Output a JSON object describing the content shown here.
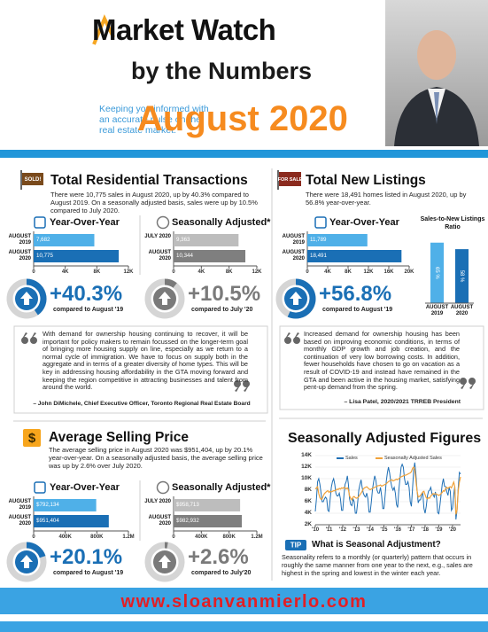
{
  "header": {
    "title": "Market Watch",
    "subtitle": "by the Numbers",
    "blurb": "Keeping you informed with an accurate pulse on the real estate market.",
    "month": "August 2020"
  },
  "transactions": {
    "icon": "SOLD!",
    "title": "Total Residential Transactions",
    "description": "There were 10,775 sales in August 2020, up by 40.3% compared to August 2019. On a seasonally adjusted basis, sales were up by 10.5% compared to July 2020.",
    "yoy": {
      "type": "bar",
      "horizontal": true,
      "title": "Year-Over-Year",
      "categories": [
        "AUGUST 2019",
        "AUGUST 2020"
      ],
      "values": [
        7682,
        10775
      ],
      "value_labels": [
        "7,682",
        "10,775"
      ],
      "colors": [
        "#4fb0e8",
        "#1a6fb5"
      ],
      "xlim": [
        0,
        12000
      ],
      "xticks": [
        0,
        {
          "value": 4000,
          "label": "4K"
        },
        {
          "value": 8000,
          "label": "8K"
        },
        {
          "value": 12000,
          "label": "12K"
        }
      ]
    },
    "sa": {
      "type": "bar",
      "horizontal": true,
      "title": "Seasonally Adjusted*",
      "categories": [
        "JULY 2020",
        "AUGUST 2020"
      ],
      "values": [
        9363,
        10344
      ],
      "value_labels": [
        "9,363",
        "10,344"
      ],
      "colors": [
        "#bdbdbd",
        "#7f7f7f"
      ],
      "xlim": [
        0,
        12000
      ],
      "xticks": [
        0,
        {
          "value": 4000,
          "label": "4K"
        },
        {
          "value": 8000,
          "label": "8K"
        },
        {
          "value": 12000,
          "label": "12K"
        }
      ]
    },
    "yoy_change": {
      "value": 40.3,
      "label": "+40.3%",
      "caption": "compared to August '19"
    },
    "sa_change": {
      "value": 10.5,
      "label": "+10.5%",
      "caption": "compared to July '20"
    }
  },
  "quote1": {
    "text": "With demand for ownership housing continuing to recover, it will be important for policy makers to remain focussed on the longer-term goal of bringing more housing supply on line, especially as we return to a normal cycle of immigration. We have to focus on supply both in the aggregate and in terms of a greater diversity of home types. This will be key in addressing housing affordability in the GTA moving forward and keeping the region competitive in attracting businesses and talent from around the world.",
    "author": "– John DiMichele, Chief Executive Officer, Toronto Regional Real Estate Board"
  },
  "listings": {
    "icon": "FOR SALE",
    "title": "Total New Listings",
    "description": "There were 18,491 homes listed in August 2020, up by 56.8% year-over-year.",
    "yoy": {
      "type": "bar",
      "horizontal": true,
      "title": "Year-Over-Year",
      "categories": [
        "AUGUST 2019",
        "AUGUST 2020"
      ],
      "values": [
        11789,
        18491
      ],
      "value_labels": [
        "11,789",
        "18,491"
      ],
      "colors": [
        "#4fb0e8",
        "#1a6fb5"
      ],
      "xlim": [
        0,
        20000
      ],
      "xticks": [
        0,
        {
          "value": 4000,
          "label": "4K"
        },
        {
          "value": 8000,
          "label": "8K"
        },
        {
          "value": 12000,
          "label": "12K"
        },
        {
          "value": 16000,
          "label": "16K"
        },
        {
          "value": 20000,
          "label": "20K"
        }
      ]
    },
    "ratio": {
      "type": "bar",
      "horizontal": false,
      "title": "Sales-to-New Listings Ratio",
      "categories": [
        "AUGUST 2019",
        "AUGUST 2020"
      ],
      "values": [
        65,
        58
      ],
      "value_labels": [
        "65 %",
        "58 %"
      ],
      "colors": [
        "#4fb0e8",
        "#1a6fb5"
      ]
    },
    "yoy_change": {
      "value": 56.8,
      "label": "+56.8%",
      "caption": "compared to August '19"
    }
  },
  "quote2": {
    "text": "Increased demand for ownership housing has been based on improving economic conditions, in terms of monthly GDP growth and job creation, and the continuation of very low borrowing costs. In addition, fewer households have chosen to go on vacation as a result of COVID-19 and instead have remained in the GTA and been active in the housing market, satisfying pent-up demand from the spring.",
    "author": "– Lisa Patel, 2020/2021 TRREB President"
  },
  "price": {
    "icon": "$",
    "title": "Average Selling Price",
    "description": "The average selling price in August 2020 was $951,404, up by 20.1% year-over-year. On a seasonally adjusted basis, the average selling price was up by 2.6% over July 2020.",
    "yoy": {
      "type": "bar",
      "horizontal": true,
      "title": "Year-Over-Year",
      "categories": [
        "AUGUST 2019",
        "AUGUST 2020"
      ],
      "values": [
        792134,
        951404
      ],
      "value_labels": [
        "$792,134",
        "$951,404"
      ],
      "colors": [
        "#4fb0e8",
        "#1a6fb5"
      ],
      "xlim": [
        0,
        1200000
      ],
      "xticks": [
        0,
        {
          "value": 400000,
          "label": "400K"
        },
        {
          "value": 800000,
          "label": "800K"
        },
        {
          "value": 1200000,
          "label": "1.2M"
        }
      ]
    },
    "sa": {
      "type": "bar",
      "horizontal": true,
      "title": "Seasonally Adjusted*",
      "categories": [
        "JULY 2020",
        "AUGUST 2020"
      ],
      "values": [
        958713,
        982932
      ],
      "value_labels": [
        "$958,713",
        "$982,932"
      ],
      "colors": [
        "#bdbdbd",
        "#7f7f7f"
      ],
      "xlim": [
        0,
        1200000
      ],
      "xticks": [
        0,
        {
          "value": 400000,
          "label": "400K"
        },
        {
          "value": 800000,
          "label": "800K"
        },
        {
          "value": 1200000,
          "label": "1.2M"
        }
      ]
    },
    "yoy_change": {
      "value": 20.1,
      "label": "+20.1%",
      "caption": "compared to August '19"
    },
    "sa_change": {
      "value": 2.6,
      "label": "+2.6%",
      "caption": "compared to July'20"
    }
  },
  "seasonal": {
    "title": "Seasonally Adjusted Figures",
    "chart": {
      "type": "line",
      "series": [
        {
          "name": "Sales",
          "color": "#1f6fb5",
          "values": [
            4300,
            6500,
            9500,
            10000,
            9000,
            7500,
            6000,
            6000,
            6500,
            6800,
            6500,
            4500,
            4300,
            6500,
            8500,
            9500,
            10000,
            9000,
            7500,
            7000,
            7000,
            7500,
            6500,
            4500,
            4500,
            7000,
            9000,
            9500,
            10500,
            9000,
            6500,
            5500,
            5300,
            6500,
            6000,
            4000,
            4000,
            5800,
            8000,
            9000,
            9800,
            8500,
            7500,
            7000,
            6800,
            7500,
            6500,
            4200,
            4200,
            6000,
            8200,
            9500,
            10500,
            9700,
            8000,
            7500,
            7500,
            8500,
            7000,
            4800,
            4800,
            7000,
            9500,
            11000,
            12000,
            11000,
            9500,
            8500,
            8000,
            8500,
            7500,
            5500,
            5000,
            8000,
            10000,
            12000,
            12500,
            12000,
            10000,
            9000,
            9000,
            9500,
            8500,
            6000,
            5200,
            8300,
            11500,
            12800,
            10800,
            8000,
            5800,
            6300,
            6300,
            7200,
            7400,
            4800,
            4000,
            5200,
            7000,
            7800,
            8000,
            8500,
            7400,
            7200,
            6800,
            7700,
            6700,
            4100,
            3900,
            5500,
            7200,
            9000,
            10000,
            8700,
            8600,
            7700,
            7100,
            8500,
            7800,
            4500,
            4900,
            7200,
            8700,
            2900,
            4600,
            8500,
            11100,
            10800
          ]
        },
        {
          "name": "Seasonally Adjusted Sales",
          "color": "#f0a23b",
          "values": [
            8200,
            8400,
            8600,
            7400,
            6700,
            6400,
            6500,
            7000,
            7400,
            7600,
            7800,
            7900,
            7600,
            7800,
            7700,
            7800,
            7900,
            7900,
            8000,
            8200,
            8100,
            8300,
            8200,
            8400,
            8300,
            8500,
            8400,
            8200,
            8400,
            8100,
            7000,
            6600,
            6300,
            6800,
            6900,
            6700,
            6600,
            6700,
            6900,
            7200,
            7500,
            7800,
            8200,
            8400,
            8500,
            8600,
            8400,
            8200,
            8100,
            8200,
            8300,
            8400,
            8500,
            8600,
            8700,
            8800,
            8800,
            8900,
            8700,
            8800,
            8900,
            9000,
            9100,
            9300,
            9500,
            9600,
            9700,
            9800,
            9600,
            9700,
            9800,
            9900,
            9800,
            10000,
            10200,
            10300,
            10400,
            10500,
            10600,
            10600,
            10700,
            10800,
            10900,
            11000,
            11200,
            11800,
            12000,
            11500,
            9600,
            7900,
            6800,
            6900,
            7100,
            7400,
            7700,
            7800,
            7200,
            6700,
            6500,
            6700,
            6600,
            7000,
            7200,
            7400,
            7300,
            7400,
            7300,
            7200,
            7100,
            7200,
            7400,
            7600,
            7900,
            7800,
            8300,
            8500,
            8300,
            8500,
            8600,
            8400,
            8900,
            9400,
            8600,
            3800,
            4600,
            7900,
            9400,
            10300
          ]
        }
      ],
      "xlim": [
        0,
        127
      ],
      "xticks": [
        {
          "value": 0,
          "label": "'10"
        },
        {
          "value": 12,
          "label": "'11"
        },
        {
          "value": 24,
          "label": "'12"
        },
        {
          "value": 36,
          "label": "'13"
        },
        {
          "value": 48,
          "label": "'14"
        },
        {
          "value": 60,
          "label": "'15"
        },
        {
          "value": 72,
          "label": "'16"
        },
        {
          "value": 84,
          "label": "'17"
        },
        {
          "value": 96,
          "label": "'18"
        },
        {
          "value": 108,
          "label": "'19"
        },
        {
          "value": 120,
          "label": "'20"
        }
      ],
      "ylim": [
        2000,
        14000
      ],
      "yticks": [
        {
          "value": 2000,
          "label": "2K"
        },
        {
          "value": 4000,
          "label": "4K"
        },
        {
          "value": 6000,
          "label": "6K"
        },
        {
          "value": 8000,
          "label": "8K"
        },
        {
          "value": 10000,
          "label": "10K"
        },
        {
          "value": 12000,
          "label": "12K"
        },
        {
          "value": 14000,
          "label": "14K"
        }
      ],
      "grid": true
    },
    "tip_badge": "TIP",
    "tip_title": "What is Seasonal Adjustment?",
    "tip_text": "Seasonality refers to a monthly (or quarterly) pattern that occurs in roughly the same manner from one year to the next, e.g., sales are highest in the spring and lowest in the winter each year."
  },
  "footer": {
    "url": "www.sloanvanmierlo.com"
  }
}
